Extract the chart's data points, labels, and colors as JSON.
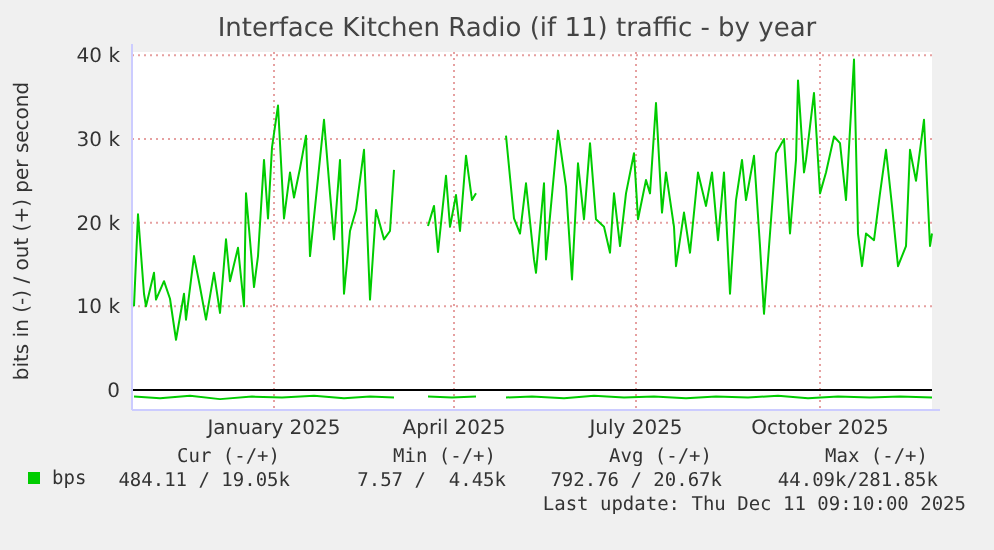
{
  "chart_data": {
    "type": "line",
    "title": "Interface Kitchen Radio (if 11) traffic - by year",
    "ylabel": "bits in (-) / out (+) per second",
    "xlim": [
      "2024-11-06",
      "2025-12-11"
    ],
    "xticks": [
      {
        "value": "2025-01-16",
        "label": "January 2025"
      },
      {
        "value": "2025-04-16",
        "label": "April 2025"
      },
      {
        "value": "2025-07-16",
        "label": "July 2025"
      },
      {
        "value": "2025-10-16",
        "label": "October 2025"
      }
    ],
    "ylim": [
      -2400,
      40400
    ],
    "yticks": [
      0,
      {
        "value": 10000,
        "label": "10 k"
      },
      {
        "value": 20000,
        "label": "20 k"
      },
      {
        "value": 30000,
        "label": "30 k"
      },
      {
        "value": 40000,
        "label": "40 k"
      }
    ],
    "grid": true,
    "legend": "bottom",
    "line_style": "solid",
    "ref_lines": [
      {
        "axis": "y",
        "value": 0,
        "color": "#000000"
      }
    ],
    "series": [
      {
        "name": "bps",
        "color": "#00cc00",
        "x": [
          "2024-11-07",
          "2024-11-09",
          "2024-11-12",
          "2024-11-13",
          "2024-11-17",
          "2024-11-18",
          "2024-11-22",
          "2024-11-25",
          "2024-11-28",
          "2024-12-02",
          "2024-12-03",
          "2024-12-07",
          "2024-12-10",
          "2024-12-13",
          "2024-12-17",
          "2024-12-20",
          "2024-12-23",
          "2024-12-25",
          "2024-12-29",
          "2025-01-01",
          "2025-01-02",
          "2025-01-06",
          "2025-01-08",
          "2025-01-11",
          "2025-01-13",
          "2025-01-15",
          "2025-01-18",
          "2025-01-21",
          "2025-01-24",
          "2025-01-26",
          "2025-01-29",
          "2025-02-01",
          "2025-02-03",
          "2025-02-06",
          "2025-02-10",
          "2025-02-13",
          "2025-02-15",
          "2025-02-18",
          "2025-02-20",
          "2025-02-23",
          "2025-02-26",
          "2025-03-02",
          "2025-03-05",
          "2025-03-08",
          "2025-03-12",
          "2025-03-15",
          "2025-03-17",
          "2025-03-25",
          "2025-04-03",
          "2025-04-06",
          "2025-04-08",
          "2025-04-12",
          "2025-04-14",
          "2025-04-17",
          "2025-04-19",
          "2025-04-22",
          "2025-04-25",
          "2025-04-27",
          "2025-05-05",
          "2025-05-12",
          "2025-05-16",
          "2025-05-19",
          "2025-05-22",
          "2025-05-26",
          "2025-05-27",
          "2025-05-31",
          "2025-06-01",
          "2025-06-05",
          "2025-06-07",
          "2025-06-11",
          "2025-06-14",
          "2025-06-17",
          "2025-06-20",
          "2025-06-23",
          "2025-06-26",
          "2025-06-30",
          "2025-07-03",
          "2025-07-05",
          "2025-07-08",
          "2025-07-11",
          "2025-07-15",
          "2025-07-17",
          "2025-07-21",
          "2025-07-23",
          "2025-07-26",
          "2025-07-29",
          "2025-07-31",
          "2025-08-04",
          "2025-08-05",
          "2025-08-09",
          "2025-08-12",
          "2025-08-16",
          "2025-08-20",
          "2025-08-23",
          "2025-08-26",
          "2025-08-29",
          "2025-09-01",
          "2025-09-04",
          "2025-09-07",
          "2025-09-09",
          "2025-09-13",
          "2025-09-16",
          "2025-09-18",
          "2025-09-21",
          "2025-09-24",
          "2025-09-28",
          "2025-10-01",
          "2025-10-04",
          "2025-10-05",
          "2025-10-08",
          "2025-10-09",
          "2025-10-13",
          "2025-10-16",
          "2025-10-19",
          "2025-10-23",
          "2025-10-26",
          "2025-10-29",
          "2025-11-02",
          "2025-11-04",
          "2025-11-06",
          "2025-11-08",
          "2025-11-12",
          "2025-11-15",
          "2025-11-18",
          "2025-11-21",
          "2025-11-24",
          "2025-11-28",
          "2025-11-30",
          "2025-12-03",
          "2025-12-07",
          "2025-12-10",
          "2025-12-11"
        ],
        "values": [
          10000,
          21000,
          11500,
          10000,
          14000,
          10800,
          13000,
          10900,
          6000,
          11500,
          8400,
          16000,
          12300,
          8400,
          14000,
          9200,
          18000,
          13000,
          17000,
          10000,
          23500,
          12300,
          16000,
          27500,
          20500,
          29000,
          34000,
          20500,
          26000,
          23000,
          26500,
          30400,
          16000,
          23000,
          32300,
          23500,
          18000,
          27500,
          11500,
          19000,
          21500,
          28700,
          10800,
          21500,
          18000,
          19000,
          26300,
          null,
          19600,
          22000,
          16500,
          25600,
          19500,
          23300,
          19000,
          28000,
          22700,
          23500,
          null,
          30400,
          20500,
          18700,
          24700,
          15600,
          14000,
          24700,
          15600,
          25900,
          31000,
          24300,
          13200,
          27100,
          20400,
          29500,
          20400,
          19500,
          16400,
          23500,
          17200,
          23500,
          28300,
          20400,
          25100,
          23500,
          34300,
          21200,
          26000,
          19500,
          14800,
          21200,
          16400,
          26000,
          22000,
          26000,
          17900,
          26000,
          11500,
          22700,
          27500,
          22700,
          28000,
          17200,
          9100,
          18700,
          28300,
          30000,
          18700,
          27500,
          37000,
          26000,
          27500,
          35500,
          23500,
          26000,
          30300,
          29500,
          22700,
          39500,
          18700,
          14800,
          18700,
          17900,
          23500,
          28700,
          22000,
          14800,
          17200,
          28700,
          25000,
          32300,
          17200,
          18700
        ]
      },
      {
        "color": "#00cc00",
        "x": [
          "2024-11-07",
          "2024-11-20",
          "2024-12-05",
          "2024-12-20",
          "2025-01-05",
          "2025-01-20",
          "2025-02-05",
          "2025-02-20",
          "2025-03-05",
          "2025-03-17",
          "2025-03-25",
          "2025-04-03",
          "2025-04-15",
          "2025-04-27",
          "2025-05-05",
          "2025-05-12",
          "2025-05-25",
          "2025-06-10",
          "2025-06-25",
          "2025-07-10",
          "2025-07-25",
          "2025-08-10",
          "2025-08-25",
          "2025-09-10",
          "2025-09-25",
          "2025-10-10",
          "2025-10-25",
          "2025-11-10",
          "2025-11-25",
          "2025-12-11"
        ],
        "values": [
          -800,
          -1000,
          -700,
          -1100,
          -800,
          -900,
          -700,
          -1000,
          -800,
          -900,
          null,
          -800,
          -900,
          -800,
          null,
          -900,
          -800,
          -1000,
          -700,
          -900,
          -800,
          -1000,
          -800,
          -900,
          -700,
          -1000,
          -800,
          -900,
          -800,
          -900
        ]
      }
    ],
    "annotations": [
      "Cur (-/+)",
      "Min (-/+)",
      "Avg (-/+)",
      "Max (-/+)",
      "484.11 / 19.05k",
      "7.57 /  4.45k",
      "792.76 / 20.67k",
      "44.09k/281.85k",
      "Last update: Thu Dec 11 09:10:00 2025"
    ]
  }
}
